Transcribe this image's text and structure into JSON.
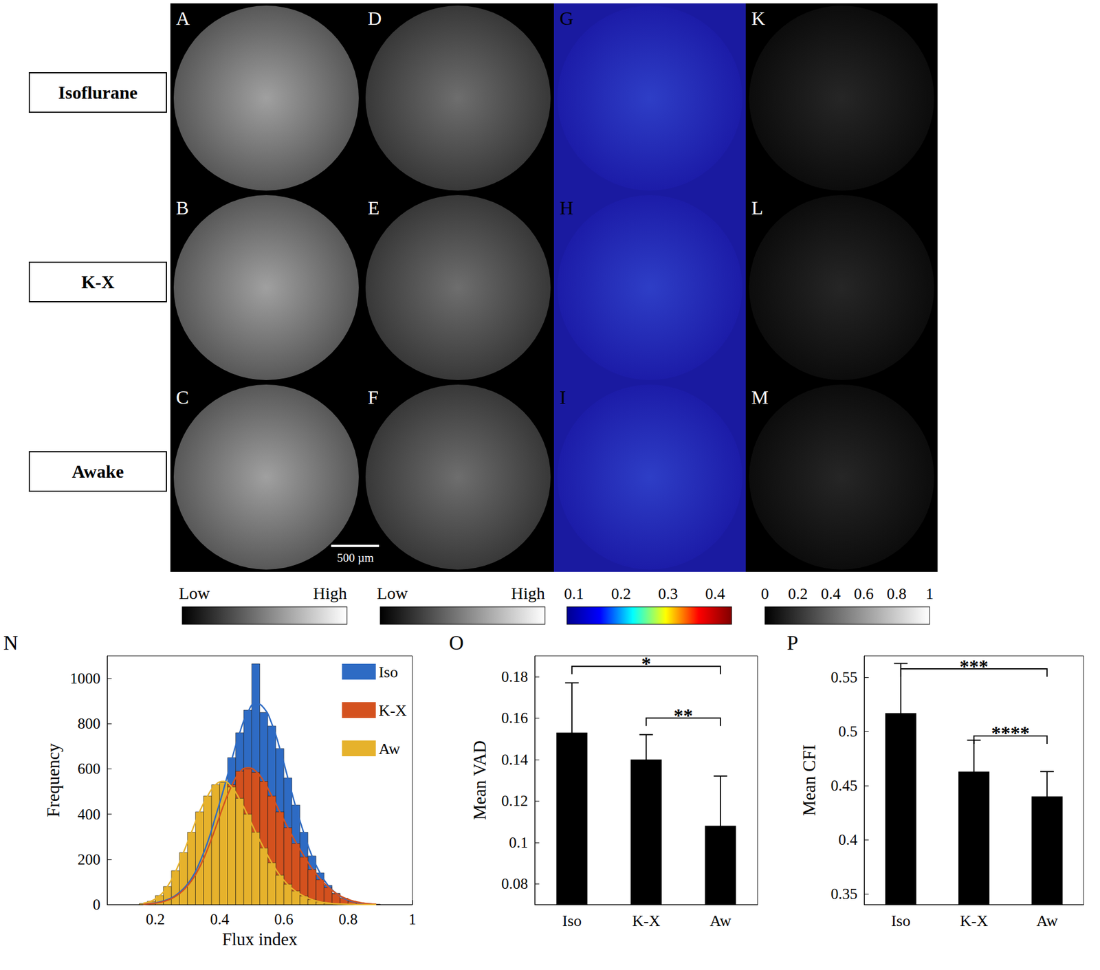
{
  "image_panels": {
    "rows": [
      "Isoflurane",
      "K-X",
      "Awake"
    ],
    "letters": [
      [
        "A",
        "D",
        "G",
        "K"
      ],
      [
        "B",
        "E",
        "H",
        "L"
      ],
      [
        "C",
        "F",
        "I",
        "M"
      ]
    ],
    "scale_bar": "500 µm",
    "colorbars": [
      {
        "labels": [
          "Low",
          "High"
        ],
        "colors": [
          "#000000",
          "#ffffff"
        ]
      },
      {
        "labels": [
          "Low",
          "High"
        ],
        "colors": [
          "#000000",
          "#ffffff"
        ]
      },
      {
        "range": [
          0.085,
          0.435
        ],
        "ticks": [
          0.1,
          0.2,
          0.3,
          0.4
        ],
        "colors": [
          "#00008f",
          "#0000ff",
          "#00ffff",
          "#ffff00",
          "#ff0000",
          "#800000"
        ]
      },
      {
        "range": [
          0,
          1
        ],
        "ticks": [
          0,
          0.2,
          0.4,
          0.6,
          0.8,
          1
        ],
        "colors": [
          "#000000",
          "#ffffff"
        ]
      }
    ]
  },
  "chart_data": [
    {
      "panel": "N",
      "type": "histogram",
      "bins": [
        0.15,
        0.175,
        0.2,
        0.225,
        0.25,
        0.275,
        0.3,
        0.325,
        0.35,
        0.375,
        0.4,
        0.425,
        0.45,
        0.475,
        0.5,
        0.525,
        0.55,
        0.575,
        0.6,
        0.625,
        0.65,
        0.675,
        0.7,
        0.725,
        0.75,
        0.775,
        0.8,
        0.825,
        0.85,
        0.875,
        0.9
      ],
      "series": [
        {
          "name": "Iso",
          "color": "#2e6bc4",
          "values": [
            2,
            5,
            10,
            22,
            40,
            70,
            115,
            190,
            280,
            400,
            520,
            650,
            760,
            860,
            1065,
            850,
            790,
            690,
            560,
            440,
            320,
            215,
            140,
            85,
            50,
            25,
            12,
            6,
            3,
            1
          ],
          "fit": [
            2,
            5,
            11,
            22,
            40,
            70,
            115,
            185,
            275,
            390,
            510,
            640,
            760,
            850,
            890,
            870,
            800,
            690,
            560,
            430,
            315,
            215,
            140,
            85,
            50,
            27,
            14,
            7,
            3,
            1
          ]
        },
        {
          "name": "K-X",
          "color": "#d4511e",
          "values": [
            1,
            3,
            8,
            18,
            35,
            65,
            110,
            170,
            250,
            340,
            440,
            530,
            590,
            600,
            585,
            545,
            480,
            410,
            340,
            270,
            210,
            155,
            110,
            75,
            48,
            28,
            15,
            8,
            4,
            2
          ],
          "fit": [
            2,
            4,
            9,
            19,
            36,
            64,
            105,
            165,
            245,
            340,
            440,
            525,
            585,
            605,
            590,
            545,
            480,
            410,
            340,
            275,
            215,
            160,
            115,
            78,
            50,
            30,
            17,
            9,
            4,
            2
          ]
        },
        {
          "name": "Aw",
          "color": "#e6b22c",
          "values": [
            5,
            15,
            40,
            80,
            150,
            230,
            320,
            410,
            480,
            530,
            540,
            520,
            470,
            400,
            320,
            250,
            185,
            130,
            90,
            60,
            38,
            22,
            12,
            6,
            3,
            2,
            1,
            0,
            0,
            0
          ],
          "fit": [
            6,
            16,
            38,
            80,
            145,
            230,
            320,
            410,
            480,
            530,
            545,
            520,
            465,
            395,
            320,
            250,
            185,
            130,
            88,
            58,
            37,
            22,
            12,
            7,
            3,
            2,
            1,
            0,
            0,
            0
          ]
        }
      ],
      "xlabel": "Flux index",
      "ylabel": "Frequency",
      "xlim": [
        0.05,
        1
      ],
      "xticks": [
        0.2,
        0.4,
        0.6,
        0.8,
        1
      ],
      "ylim": [
        0,
        1100
      ],
      "yticks": [
        0,
        200,
        400,
        600,
        800,
        1000
      ],
      "legend": "upper right"
    },
    {
      "panel": "O",
      "type": "bar",
      "categories": [
        "Iso",
        "K-X",
        "Aw"
      ],
      "values": [
        0.153,
        0.14,
        0.108
      ],
      "errors": [
        0.024,
        0.012,
        0.024
      ],
      "color": "#000000",
      "ylabel": "Mean VAD",
      "ylim": [
        0.07,
        0.19
      ],
      "yticks": [
        0.08,
        0.1,
        0.12,
        0.14,
        0.16,
        0.18
      ],
      "significance": [
        {
          "from": "Iso",
          "to": "Aw",
          "y": 0.185,
          "label": "*"
        },
        {
          "from": "K-X",
          "to": "Aw",
          "y": 0.16,
          "label": "**"
        }
      ]
    },
    {
      "panel": "P",
      "type": "bar",
      "categories": [
        "Iso",
        "K-X",
        "Aw"
      ],
      "values": [
        0.517,
        0.463,
        0.44
      ],
      "errors": [
        0.046,
        0.029,
        0.023
      ],
      "color": "#000000",
      "ylabel": "Mean CFI",
      "ylim": [
        0.34,
        0.57
      ],
      "yticks": [
        0.35,
        0.4,
        0.45,
        0.5,
        0.55
      ],
      "significance": [
        {
          "from": "Iso",
          "to": "Aw",
          "y": 0.558,
          "label": "***"
        },
        {
          "from": "K-X",
          "to": "Aw",
          "y": 0.496,
          "label": "****"
        }
      ]
    }
  ]
}
